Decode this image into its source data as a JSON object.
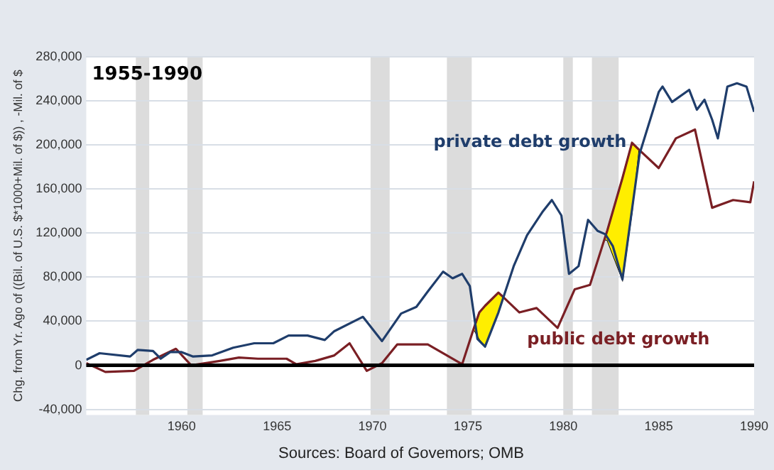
{
  "chart_data": {
    "type": "line",
    "title": "1955-1990",
    "ylabel": "Chg. from Yr. Ago of ((Bil. of U.S. $*1000+Mil. of $)) , -Mil. of $",
    "xlim": [
      1955,
      1990
    ],
    "xticks": [
      1960,
      1965,
      1970,
      1975,
      1980,
      1985,
      1990
    ],
    "ylim": [
      -45000,
      280000
    ],
    "yticks": [
      {
        "value": -40000,
        "label": "-40,000"
      },
      0,
      {
        "value": 40000,
        "label": "40,000"
      },
      {
        "value": 80000,
        "label": "80,000"
      },
      {
        "value": 120000,
        "label": "120,000"
      },
      {
        "value": 160000,
        "label": "160,000"
      },
      {
        "value": 200000,
        "label": "200,000"
      },
      {
        "value": 240000,
        "label": "240,000"
      },
      {
        "value": 280000,
        "label": "280,000"
      }
    ],
    "grid": "y",
    "legend": false,
    "marker": "none",
    "series": [
      {
        "name": "private debt growth",
        "color": "#1f3d6b",
        "x": [
          1955,
          1955.7,
          1957.3,
          1957.7,
          1958.5,
          1958.9,
          1959.4,
          1960,
          1960.6,
          1961.6,
          1962.7,
          1963.8,
          1964.8,
          1965.6,
          1966.6,
          1967.5,
          1968,
          1969.5,
          1970.5,
          1971.5,
          1972.3,
          1972.9,
          1973.7,
          1974.2,
          1974.7,
          1975.1,
          1975.5,
          1975.9,
          1976.6,
          1977.4,
          1978.1,
          1978.9,
          1979.4,
          1979.9,
          1980.3,
          1980.8,
          1981.3,
          1981.8,
          1982.2,
          1982.6,
          1983.1,
          1984,
          1985,
          1985.2,
          1985.7,
          1986.6,
          1987,
          1987.4,
          1987.8,
          1988.1,
          1988.6,
          1989.1,
          1989.6,
          1990
        ],
        "values": [
          5000,
          11000,
          8000,
          14000,
          13000,
          6000,
          12000,
          12000,
          8000,
          9000,
          16000,
          20000,
          20000,
          27000,
          27000,
          23000,
          31000,
          44000,
          22000,
          47000,
          53000,
          67000,
          85000,
          79000,
          83000,
          72000,
          24000,
          17000,
          48000,
          90000,
          118000,
          139000,
          150000,
          136000,
          83000,
          90000,
          132000,
          122000,
          119000,
          108000,
          78000,
          192000,
          248000,
          253000,
          239000,
          250000,
          232000,
          241000,
          223000,
          206000,
          253000,
          256000,
          253000,
          230000
        ]
      },
      {
        "name": "public debt growth",
        "color": "#7a1f24",
        "x": [
          1955,
          1956,
          1957.5,
          1958.5,
          1959.7,
          1960.5,
          1962,
          1963,
          1964,
          1965.5,
          1966,
          1967,
          1968,
          1968.8,
          1969.7,
          1970.5,
          1971.3,
          1972.9,
          1974.7,
          1975.3,
          1975.6,
          1975.9,
          1976.6,
          1976.85,
          1977.7,
          1978.6,
          1979.7,
          1980.6,
          1981.4,
          1982.15,
          1982.3,
          1983.1,
          1983.6,
          1983.95,
          1985,
          1985.9,
          1986.9,
          1987.8,
          1988.9,
          1989.8,
          1990
        ],
        "values": [
          2000,
          -6000,
          -5000,
          5000,
          15000,
          0,
          4000,
          7000,
          6000,
          6000,
          1000,
          4000,
          9000,
          20000,
          -5000,
          2000,
          19000,
          19000,
          1000,
          33000,
          48000,
          54000,
          66000,
          62000,
          48000,
          52000,
          34000,
          69000,
          73000,
          114000,
          122000,
          170000,
          202000,
          196000,
          179000,
          206000,
          214000,
          143000,
          150000,
          148000,
          167000
        ],
        "lower": [
          null,
          null,
          null,
          null,
          null,
          null,
          null,
          null,
          null,
          null,
          null,
          null,
          null,
          null,
          null,
          null,
          null,
          null,
          null,
          33000,
          24000,
          17000,
          48000,
          62000,
          null,
          null,
          null,
          null,
          null,
          114000,
          114000,
          78000,
          140000,
          196000,
          null,
          null,
          null,
          null,
          null,
          null,
          null
        ],
        "upper": [
          null,
          null,
          null,
          null,
          null,
          null,
          null,
          null,
          null,
          null,
          null,
          null,
          null,
          null,
          null,
          null,
          null,
          null,
          null,
          33000,
          48000,
          54000,
          66000,
          62000,
          null,
          null,
          null,
          null,
          null,
          114000,
          122000,
          170000,
          202000,
          196000,
          null,
          null,
          null,
          null,
          null,
          null,
          null
        ]
      }
    ],
    "bands": [
      {
        "axis": "x",
        "from": 1957.6,
        "to": 1958.3,
        "color": "#dcdcdc"
      },
      {
        "axis": "x",
        "from": 1960.3,
        "to": 1961.1,
        "color": "#dcdcdc"
      },
      {
        "axis": "x",
        "from": 1969.9,
        "to": 1970.9,
        "color": "#dcdcdc"
      },
      {
        "axis": "x",
        "from": 1973.9,
        "to": 1975.2,
        "color": "#dcdcdc"
      },
      {
        "axis": "x",
        "from": 1980,
        "to": 1980.5,
        "color": "#dcdcdc"
      },
      {
        "axis": "x",
        "from": 1981.5,
        "to": 1982.9,
        "color": "#dcdcdc"
      }
    ],
    "ref_lines": [
      {
        "axis": "y",
        "value": 0,
        "color": "#000000"
      }
    ],
    "annotations": [
      "Sources: Board of Govemors; OMB"
    ]
  }
}
